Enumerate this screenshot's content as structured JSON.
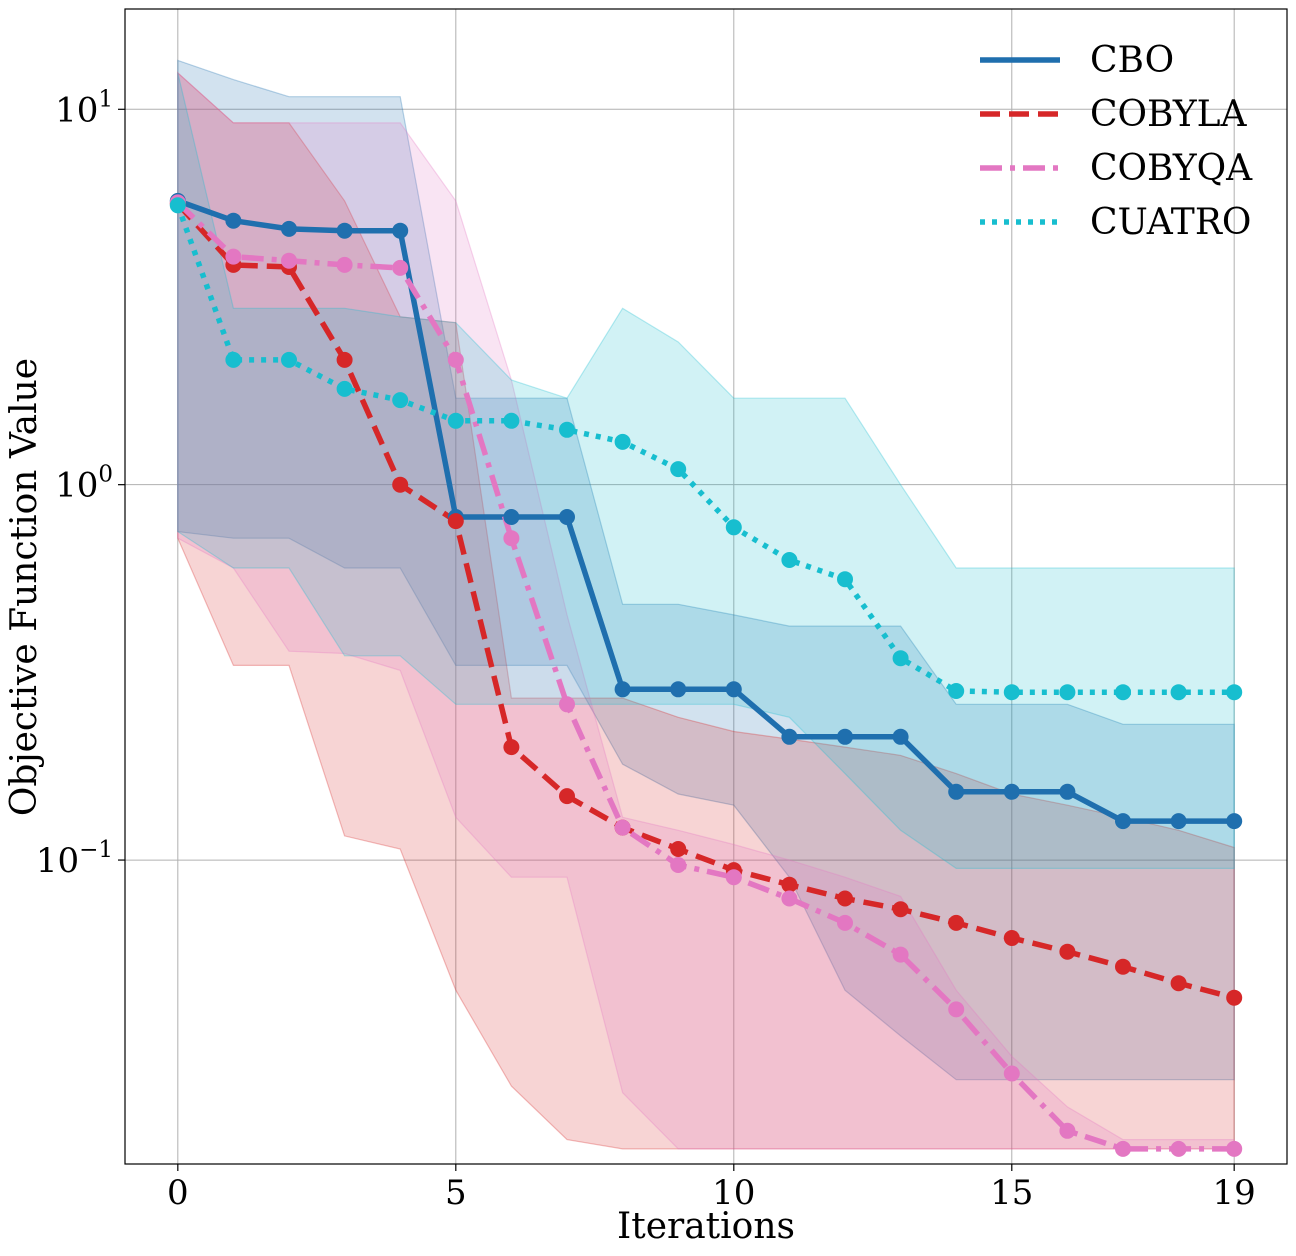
{
  "chart_data": {
    "type": "line",
    "scale_y": "log",
    "xlabel": "Iterations",
    "ylabel": "Objective Function Value",
    "xlim": [
      -0.95,
      19.95
    ],
    "ylim": [
      0.0155,
      18.5
    ],
    "x_ticks": [
      0,
      5,
      10,
      15,
      19
    ],
    "x_tick_labels": [
      "0",
      "5",
      "10",
      "15",
      "19"
    ],
    "y_ticks": [
      10,
      1,
      0.1
    ],
    "y_tick_bases": [
      "10",
      "10",
      "10"
    ],
    "y_tick_exponents": [
      "1",
      "0",
      "−1"
    ],
    "legend_position": "top-right",
    "grid": true,
    "x": [
      0,
      1,
      2,
      3,
      4,
      5,
      6,
      7,
      8,
      9,
      10,
      11,
      12,
      13,
      14,
      15,
      16,
      17,
      18,
      19
    ],
    "series": [
      {
        "name": "CBO",
        "color": "#1f6fae",
        "dash": "solid",
        "values": [
          5.7,
          5.05,
          4.8,
          4.75,
          4.75,
          0.82,
          0.82,
          0.82,
          0.285,
          0.285,
          0.285,
          0.213,
          0.213,
          0.213,
          0.152,
          0.152,
          0.152,
          0.127,
          0.127,
          0.127
        ],
        "band_low": [
          0.75,
          0.72,
          0.72,
          0.6,
          0.6,
          0.33,
          0.33,
          0.33,
          0.18,
          0.15,
          0.14,
          0.09,
          0.045,
          0.034,
          0.026,
          0.026,
          0.026,
          0.026,
          0.026,
          0.026
        ],
        "band_high": [
          13.5,
          12,
          10.8,
          10.8,
          10.8,
          1.7,
          1.7,
          1.7,
          0.48,
          0.48,
          0.45,
          0.42,
          0.42,
          0.42,
          0.26,
          0.26,
          0.26,
          0.23,
          0.23,
          0.23
        ]
      },
      {
        "name": "COBYLA",
        "color": "#d62728",
        "dash": "dashed",
        "values": [
          5.6,
          3.85,
          3.8,
          2.15,
          1.0,
          0.8,
          0.2,
          0.148,
          0.122,
          0.107,
          0.094,
          0.086,
          0.079,
          0.074,
          0.068,
          0.062,
          0.057,
          0.052,
          0.047,
          0.043
        ],
        "band_low": [
          0.72,
          0.33,
          0.33,
          0.116,
          0.107,
          0.045,
          0.025,
          0.018,
          0.017,
          0.017,
          0.017,
          0.017,
          0.017,
          0.017,
          0.017,
          0.017,
          0.017,
          0.017,
          0.017,
          0.017
        ],
        "band_high": [
          12.5,
          9.2,
          9.2,
          5.7,
          2.8,
          2.7,
          0.27,
          0.27,
          0.27,
          0.24,
          0.22,
          0.21,
          0.2,
          0.19,
          0.17,
          0.15,
          0.14,
          0.13,
          0.12,
          0.108
        ]
      },
      {
        "name": "COBYQA",
        "color": "#e377c2",
        "dash": "dashdot",
        "values": [
          5.65,
          4.05,
          3.95,
          3.85,
          3.78,
          2.15,
          0.72,
          0.26,
          0.122,
          0.097,
          0.09,
          0.079,
          0.068,
          0.056,
          0.04,
          0.027,
          0.019,
          0.017,
          0.017,
          0.017
        ],
        "band_low": [
          0.72,
          0.6,
          0.36,
          0.355,
          0.32,
          0.13,
          0.09,
          0.09,
          0.024,
          0.017,
          0.017,
          0.017,
          0.017,
          0.017,
          0.017,
          0.017,
          0.017,
          0.017,
          0.017,
          0.017
        ],
        "band_high": [
          12.5,
          9.2,
          9.2,
          9.2,
          9.2,
          5.7,
          1.9,
          0.45,
          0.13,
          0.12,
          0.11,
          0.1,
          0.09,
          0.08,
          0.045,
          0.03,
          0.022,
          0.018,
          0.018,
          0.018
        ]
      },
      {
        "name": "CUATRO",
        "color": "#17becf",
        "dash": "dotted",
        "values": [
          5.55,
          2.15,
          2.15,
          1.8,
          1.68,
          1.48,
          1.48,
          1.4,
          1.3,
          1.1,
          0.77,
          0.63,
          0.56,
          0.345,
          0.282,
          0.28,
          0.28,
          0.28,
          0.28,
          0.28
        ],
        "band_low": [
          0.75,
          0.6,
          0.6,
          0.35,
          0.35,
          0.26,
          0.26,
          0.26,
          0.26,
          0.26,
          0.26,
          0.24,
          0.17,
          0.12,
          0.095,
          0.095,
          0.095,
          0.095,
          0.095,
          0.095
        ],
        "band_high": [
          12.5,
          2.95,
          2.95,
          2.95,
          2.8,
          2.7,
          1.9,
          1.7,
          2.95,
          2.4,
          1.7,
          1.7,
          1.7,
          1.0,
          0.6,
          0.6,
          0.6,
          0.6,
          0.6,
          0.6
        ]
      }
    ]
  }
}
